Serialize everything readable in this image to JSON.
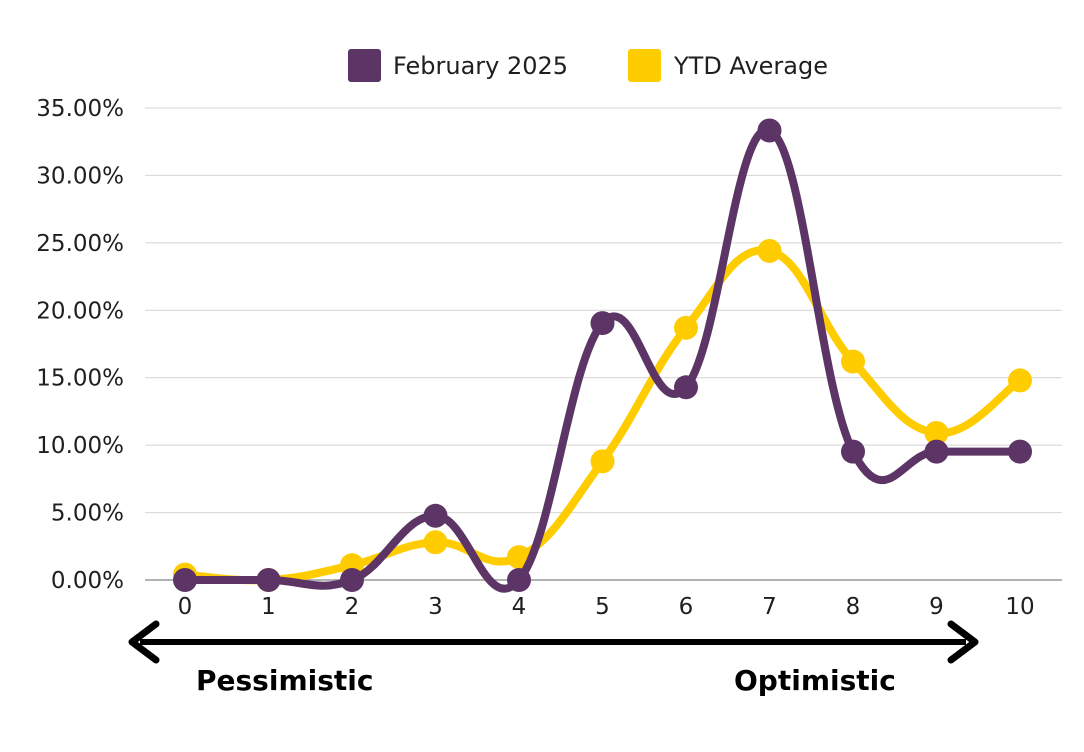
{
  "chart_data": {
    "type": "line",
    "smooth": true,
    "x": [
      "0",
      "1",
      "2",
      "3",
      "4",
      "5",
      "6",
      "7",
      "8",
      "9",
      "10"
    ],
    "series": [
      {
        "name": "February 2025",
        "color": "#5c3566",
        "values": [
          0.0,
          0.0,
          0.0,
          4.76,
          0.0,
          19.05,
          14.29,
          33.33,
          9.52,
          9.52,
          9.52
        ]
      },
      {
        "name": "YTD Average",
        "color": "#ffcc00",
        "values": [
          0.4,
          0.0,
          1.1,
          2.8,
          1.7,
          8.8,
          18.7,
          24.4,
          16.2,
          10.9,
          14.8
        ]
      }
    ],
    "y_ticks": [
      "0.00%",
      "5.00%",
      "10.00%",
      "15.00%",
      "20.00%",
      "25.00%",
      "30.00%",
      "35.00%"
    ],
    "ylim": [
      0,
      35
    ],
    "grid": true,
    "legend_position": "top",
    "scale_labels": {
      "left": "Pessimistic",
      "right": "Optimistic"
    }
  }
}
